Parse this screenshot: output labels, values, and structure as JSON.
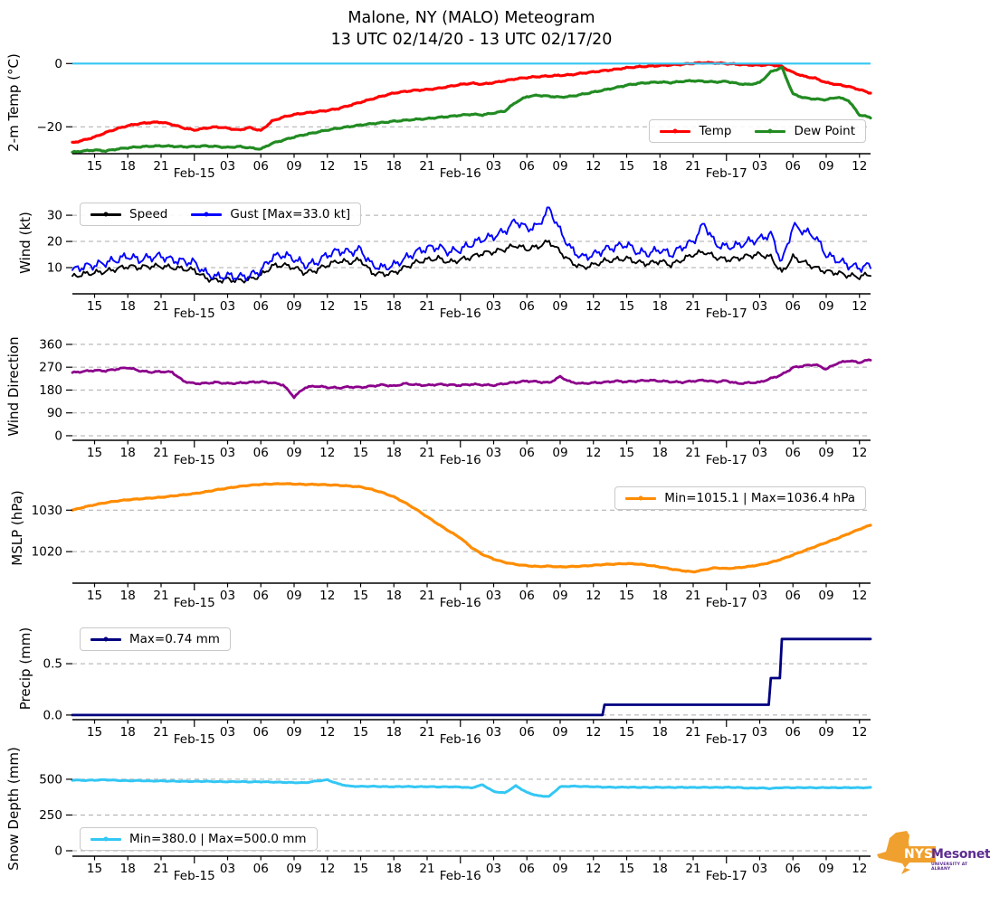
{
  "title": {
    "line1": "Malone, NY (MALO) Meteogram",
    "line2": "13 UTC 02/14/20 - 13 UTC 02/17/20"
  },
  "logo": {
    "nys": "NYS",
    "mesonet": "Mesonet",
    "tagline": "UNIVERSITY AT ALBANY",
    "orange": "#F0A02E",
    "purple": "#5C2D91"
  },
  "chart_data": {
    "type": "line",
    "station": "Malone, NY (MALO)",
    "time_span": "13 UTC 02/14/20 - 13 UTC 02/17/20",
    "x_axis": {
      "range_hours": [
        0,
        72
      ],
      "tick_hours": [
        2,
        5,
        8,
        11,
        14,
        17,
        20,
        23,
        26,
        29,
        32,
        35,
        38,
        41,
        44,
        47,
        50,
        53,
        56,
        59,
        62,
        65,
        68,
        71
      ],
      "tick_labels": [
        "15",
        "18",
        "21",
        "Feb-15",
        "03",
        "06",
        "09",
        "12",
        "15",
        "18",
        "21",
        "Feb-16",
        "03",
        "06",
        "09",
        "12",
        "15",
        "18",
        "21",
        "Feb-17",
        "03",
        "06",
        "09",
        "12"
      ]
    },
    "grid": "horizontal dashed",
    "panels": [
      {
        "key": "temp",
        "ylabel": "2-m Temp (°C)",
        "ylim": [
          -28.5,
          3.8
        ],
        "yticks": [
          0,
          -20
        ],
        "ytick_labels": [
          "0",
          "−20"
        ],
        "zero_line": {
          "value": 0,
          "color": "#33C7F4",
          "name": "freezing-line"
        },
        "legend_position": "lower right",
        "series": [
          {
            "name": "Temp",
            "color": "#FF0000",
            "width": 3.2,
            "jitter": 0.25,
            "values": [
              -25.0,
              -24.2,
              -23.2,
              -21.8,
              -20.6,
              -19.6,
              -19.0,
              -18.6,
              -18.5,
              -19.2,
              -20.3,
              -21.0,
              -20.4,
              -20.0,
              -20.4,
              -21.0,
              -20.2,
              -21.2,
              -18.2,
              -16.9,
              -16.1,
              -15.6,
              -15.2,
              -14.8,
              -14.2,
              -13.2,
              -12.2,
              -11.2,
              -10.2,
              -9.3,
              -8.8,
              -8.4,
              -8.2,
              -7.8,
              -7.2,
              -6.6,
              -6.2,
              -6.5,
              -6.0,
              -5.4,
              -4.8,
              -4.4,
              -4.1,
              -3.9,
              -3.7,
              -3.5,
              -3.0,
              -2.6,
              -2.2,
              -1.8,
              -1.3,
              -1.0,
              -0.8,
              -0.6,
              -0.4,
              -0.2,
              0.1,
              0.3,
              0.2,
              0.0,
              -0.2,
              -0.4,
              -0.5,
              -0.3,
              -0.9,
              -2.8,
              -4.0,
              -4.6,
              -6.0,
              -6.6,
              -7.2,
              -8.2,
              -9.3
            ]
          },
          {
            "name": "Dew Point",
            "color": "#228B22",
            "width": 3.2,
            "jitter": 0.25,
            "values": [
              -28.0,
              -27.6,
              -27.3,
              -27.6,
              -27.0,
              -26.6,
              -26.3,
              -26.1,
              -26.0,
              -26.1,
              -26.3,
              -26.2,
              -26.0,
              -26.2,
              -26.5,
              -26.2,
              -26.6,
              -27.0,
              -25.2,
              -24.2,
              -23.2,
              -22.4,
              -21.7,
              -21.0,
              -20.4,
              -19.9,
              -19.4,
              -19.0,
              -18.6,
              -18.2,
              -17.9,
              -17.6,
              -17.4,
              -17.0,
              -16.7,
              -16.3,
              -16.0,
              -16.2,
              -15.6,
              -15.0,
              -12.2,
              -10.4,
              -10.0,
              -10.3,
              -10.6,
              -10.3,
              -9.7,
              -9.0,
              -8.3,
              -7.6,
              -6.8,
              -6.3,
              -6.0,
              -5.8,
              -6.0,
              -5.6,
              -5.4,
              -5.6,
              -5.8,
              -5.6,
              -6.3,
              -6.6,
              -6.0,
              -2.6,
              -1.2,
              -9.6,
              -10.8,
              -11.2,
              -11.4,
              -10.6,
              -11.6,
              -16.2,
              -17.0
            ]
          }
        ]
      },
      {
        "key": "wind",
        "ylabel": "Wind (kt)",
        "ylim": [
          0,
          39
        ],
        "yticks": [
          30,
          20,
          10
        ],
        "ytick_labels": [
          "30",
          "20",
          "10"
        ],
        "legend_position": "upper left",
        "series": [
          {
            "name": "Speed",
            "color": "#000000",
            "width": 1.9,
            "jitter": 1.4,
            "vmin": 0,
            "values": [
              6.5,
              7.5,
              8.0,
              8.5,
              9.5,
              10.5,
              10.0,
              10.5,
              10.5,
              10.0,
              9.5,
              9.0,
              6.0,
              5.0,
              5.5,
              5.0,
              5.5,
              7.0,
              10.5,
              11.0,
              10.0,
              8.0,
              9.0,
              11.0,
              12.5,
              12.0,
              13.0,
              8.0,
              7.5,
              8.0,
              10.0,
              12.0,
              13.0,
              13.5,
              12.0,
              13.0,
              14.0,
              15.5,
              16.0,
              17.0,
              18.5,
              17.0,
              18.0,
              20.0,
              16.0,
              12.0,
              10.0,
              11.0,
              12.5,
              13.0,
              13.5,
              12.0,
              11.5,
              12.5,
              11.0,
              13.0,
              15.0,
              16.0,
              14.0,
              13.0,
              13.5,
              14.5,
              15.0,
              14.0,
              8.0,
              14.0,
              12.0,
              10.0,
              8.5,
              8.0,
              7.0,
              6.5,
              7.5
            ]
          },
          {
            "name": "Gust [Max=33.0 kt]",
            "color": "#0000FF",
            "width": 1.9,
            "jitter": 2.2,
            "vmin": 0,
            "vmax": 33,
            "values": [
              9,
              10.5,
              11,
              12,
              13,
              14.5,
              13,
              14,
              14.5,
              13,
              12.5,
              12,
              8,
              6.5,
              7,
              6.5,
              7,
              9,
              14,
              15,
              13.5,
              11,
              12,
              15,
              16.5,
              16,
              17,
              11,
              10,
              11,
              13.5,
              16,
              17.5,
              18,
              16,
              17,
              19,
              21,
              22,
              24,
              28,
              25,
              26,
              33,
              24,
              17,
              14,
              15,
              17,
              18,
              19,
              16,
              15.5,
              17,
              15,
              18,
              20,
              27,
              19,
              18,
              18.5,
              20,
              21,
              23,
              12,
              26,
              24,
              22,
              15,
              13,
              11,
              10,
              11
            ]
          }
        ]
      },
      {
        "key": "wind-direction",
        "ylabel": "Wind Direction",
        "ylim": [
          -18,
          406
        ],
        "yticks": [
          360,
          270,
          180,
          90,
          0
        ],
        "ytick_labels": [
          "360",
          "270",
          "180",
          "90",
          "0"
        ],
        "series": [
          {
            "name": "Wind Direction",
            "color": "#8B008B",
            "width": 2.8,
            "jitter": 4,
            "vmin": 0,
            "vmax": 360,
            "values": [
              248,
              253,
              257,
              255,
              262,
              268,
              256,
              250,
              252,
              250,
              215,
              205,
              206,
              210,
              205,
              207,
              210,
              212,
              208,
              200,
              152,
              190,
              195,
              190,
              188,
              192,
              190,
              195,
              200,
              195,
              205,
              200,
              198,
              202,
              200,
              198,
              202,
              200,
              198,
              205,
              210,
              215,
              212,
              208,
              232,
              210,
              205,
              208,
              210,
              215,
              212,
              215,
              218,
              215,
              212,
              210,
              215,
              218,
              212,
              216,
              205,
              208,
              210,
              225,
              240,
              268,
              275,
              280,
              262,
              285,
              295,
              288,
              300
            ]
          }
        ]
      },
      {
        "key": "mslp",
        "ylabel": "MSLP (hPa)",
        "ylim": [
          1012.4,
          1039.0
        ],
        "yticks": [
          1030,
          1020
        ],
        "ytick_labels": [
          "1030",
          "1020"
        ],
        "legend_position": "upper right",
        "series": [
          {
            "name": "Min=1015.1 | Max=1036.4 hPa",
            "color": "#FF8C00",
            "width": 3.2,
            "jitter": 0.12,
            "vmin": 1015.1,
            "vmax": 1036.4,
            "values": [
              1030.0,
              1030.7,
              1031.3,
              1031.8,
              1032.2,
              1032.5,
              1032.7,
              1032.9,
              1033.1,
              1033.4,
              1033.7,
              1034.0,
              1034.4,
              1034.9,
              1035.3,
              1035.7,
              1036.0,
              1036.2,
              1036.3,
              1036.4,
              1036.3,
              1036.2,
              1036.2,
              1036.1,
              1036.0,
              1035.8,
              1035.6,
              1035.0,
              1034.2,
              1033.2,
              1031.8,
              1030.2,
              1028.4,
              1026.6,
              1024.9,
              1023.3,
              1021.0,
              1019.3,
              1018.2,
              1017.4,
              1016.9,
              1016.6,
              1016.4,
              1016.5,
              1016.3,
              1016.4,
              1016.5,
              1016.7,
              1016.9,
              1017.0,
              1017.1,
              1017.0,
              1016.7,
              1016.3,
              1015.8,
              1015.4,
              1015.1,
              1015.6,
              1016.1,
              1015.9,
              1016.1,
              1016.4,
              1016.8,
              1017.4,
              1018.2,
              1019.2,
              1020.2,
              1021.2,
              1022.2,
              1023.2,
              1024.3,
              1025.4,
              1026.4
            ]
          }
        ]
      },
      {
        "key": "precip",
        "ylabel": "Precip (mm)",
        "ylim": [
          -0.045,
          0.95
        ],
        "yticks": [
          0.5,
          0.0
        ],
        "ytick_labels": [
          "0.5",
          "0.0"
        ],
        "legend_position": "upper left",
        "series": [
          {
            "name": "Max=0.74 mm",
            "color": "#000080",
            "width": 2.8,
            "jitter": 0,
            "step": true,
            "values": [
              0,
              0,
              0,
              0,
              0,
              0,
              0,
              0,
              0,
              0,
              0,
              0,
              0,
              0,
              0,
              0,
              0,
              0,
              0,
              0,
              0,
              0,
              0,
              0,
              0,
              0,
              0,
              0,
              0,
              0,
              0,
              0,
              0,
              0,
              0,
              0,
              0,
              0,
              0,
              0,
              0,
              0,
              0,
              0,
              0,
              0,
              0,
              0,
              0.1,
              0.1,
              0.1,
              0.1,
              0.1,
              0.1,
              0.1,
              0.1,
              0.1,
              0.1,
              0.1,
              0.1,
              0.1,
              0.1,
              0.1,
              0.36,
              0.74,
              0.74,
              0.74,
              0.74,
              0.74,
              0.74,
              0.74,
              0.74,
              0.74
            ]
          }
        ]
      },
      {
        "key": "snow-depth",
        "ylabel": "Snow Depth (mm)",
        "ylim": [
          -38,
          626
        ],
        "yticks": [
          500,
          250,
          0
        ],
        "ytick_labels": [
          "500",
          "250",
          "0"
        ],
        "legend_position": "lower left",
        "series": [
          {
            "name": "Min=380.0 | Max=500.0 mm",
            "color": "#33C7F4",
            "width": 3.0,
            "jitter": 3,
            "vmin": 380,
            "vmax": 500,
            "values": [
              495,
              492,
              494,
              497,
              492,
              490,
              491,
              488,
              489,
              487,
              486,
              485,
              486,
              484,
              483,
              484,
              482,
              483,
              481,
              479,
              477,
              476,
              488,
              496,
              468,
              452,
              450,
              451,
              449,
              448,
              450,
              448,
              449,
              447,
              448,
              446,
              440,
              462,
              415,
              405,
              455,
              408,
              385,
              380,
              448,
              452,
              450,
              448,
              445,
              444,
              445,
              444,
              443,
              444,
              443,
              444,
              443,
              444,
              443,
              444,
              443,
              438,
              440,
              436,
              442,
              441,
              442,
              441,
              442,
              441,
              442,
              441,
              442
            ]
          }
        ]
      }
    ]
  }
}
